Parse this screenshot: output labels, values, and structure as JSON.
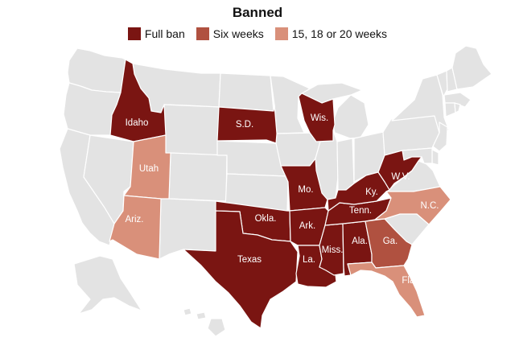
{
  "title": "Banned",
  "colors": {
    "full_ban": "#7a1512",
    "six_weeks": "#b05140",
    "weeks_15_20": "#d9907a",
    "other": "#e3e3e3",
    "border": "#ffffff"
  },
  "legend": [
    {
      "label": "Full ban",
      "category": "full_ban"
    },
    {
      "label": "Six weeks",
      "category": "six_weeks"
    },
    {
      "label": "15, 18 or 20 weeks",
      "category": "weeks_15_20"
    }
  ],
  "states": [
    {
      "id": "idaho",
      "label": "Idaho",
      "category": "full_ban"
    },
    {
      "id": "south-dakota",
      "label": "S.D.",
      "category": "full_ban"
    },
    {
      "id": "wisconsin",
      "label": "Wis.",
      "category": "full_ban"
    },
    {
      "id": "utah",
      "label": "Utah",
      "category": "weeks_15_20"
    },
    {
      "id": "missouri",
      "label": "Mo.",
      "category": "full_ban"
    },
    {
      "id": "kentucky",
      "label": "Ky.",
      "category": "full_ban"
    },
    {
      "id": "west-virginia",
      "label": "W.V.",
      "category": "full_ban"
    },
    {
      "id": "arizona",
      "label": "Ariz.",
      "category": "weeks_15_20"
    },
    {
      "id": "oklahoma",
      "label": "Okla.",
      "category": "full_ban"
    },
    {
      "id": "arkansas",
      "label": "Ark.",
      "category": "full_ban"
    },
    {
      "id": "tennessee",
      "label": "Tenn.",
      "category": "full_ban"
    },
    {
      "id": "north-carolina",
      "label": "N.C.",
      "category": "weeks_15_20"
    },
    {
      "id": "texas",
      "label": "Texas",
      "category": "full_ban"
    },
    {
      "id": "louisiana",
      "label": "La.",
      "category": "full_ban"
    },
    {
      "id": "mississippi",
      "label": "Miss.",
      "category": "full_ban"
    },
    {
      "id": "alabama",
      "label": "Ala.",
      "category": "full_ban"
    },
    {
      "id": "georgia",
      "label": "Ga.",
      "category": "six_weeks"
    },
    {
      "id": "florida",
      "label": "Fla.",
      "category": "weeks_15_20"
    }
  ]
}
